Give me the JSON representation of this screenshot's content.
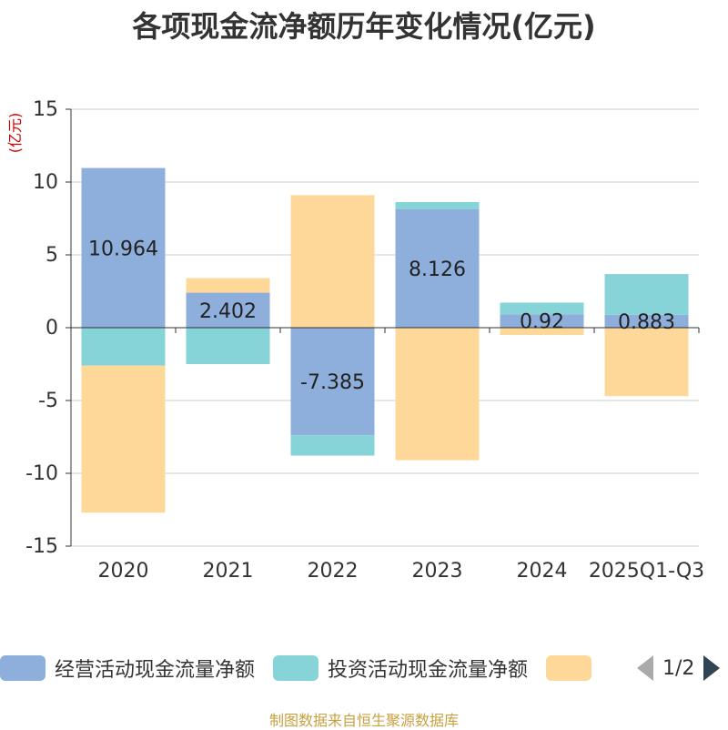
{
  "chart_data": {
    "type": "bar",
    "stacked": true,
    "title": "各项现金流净额历年变化情况(亿元)",
    "ylabel": "(亿元)",
    "xlabel": "",
    "ylim": [
      -15,
      15
    ],
    "yticks": [
      15,
      10,
      5,
      0,
      -5,
      -10,
      -15
    ],
    "categories": [
      "2020",
      "2021",
      "2022",
      "2023",
      "2024",
      "2025Q1-Q3"
    ],
    "series": [
      {
        "name": "经营活动现金流量净额",
        "color": "#8eaedb",
        "values": [
          10.964,
          2.402,
          -7.385,
          8.126,
          0.92,
          0.883
        ],
        "labels": [
          "10.964",
          "2.402",
          "-7.385",
          "8.126",
          "0.92",
          "0.883"
        ]
      },
      {
        "name": "投资活动现金流量净额",
        "color": "#86d4d8",
        "values": [
          -2.6,
          -2.5,
          -1.4,
          0.5,
          0.8,
          2.8
        ]
      },
      {
        "name": "",
        "color": "#fed899",
        "values": [
          -10.1,
          1.0,
          9.1,
          -9.1,
          -0.5,
          -4.7
        ]
      }
    ],
    "legend_position": "bottom",
    "grid": true
  },
  "legend": {
    "items": [
      {
        "label": "经营活动现金流量净额",
        "color": "#8eaedb"
      },
      {
        "label": "投资活动现金流量净额",
        "color": "#86d4d8"
      },
      {
        "label": "",
        "color": "#fed899"
      }
    ],
    "page_text": "1/2"
  },
  "source_text": "制图数据来自恒生聚源数据库"
}
